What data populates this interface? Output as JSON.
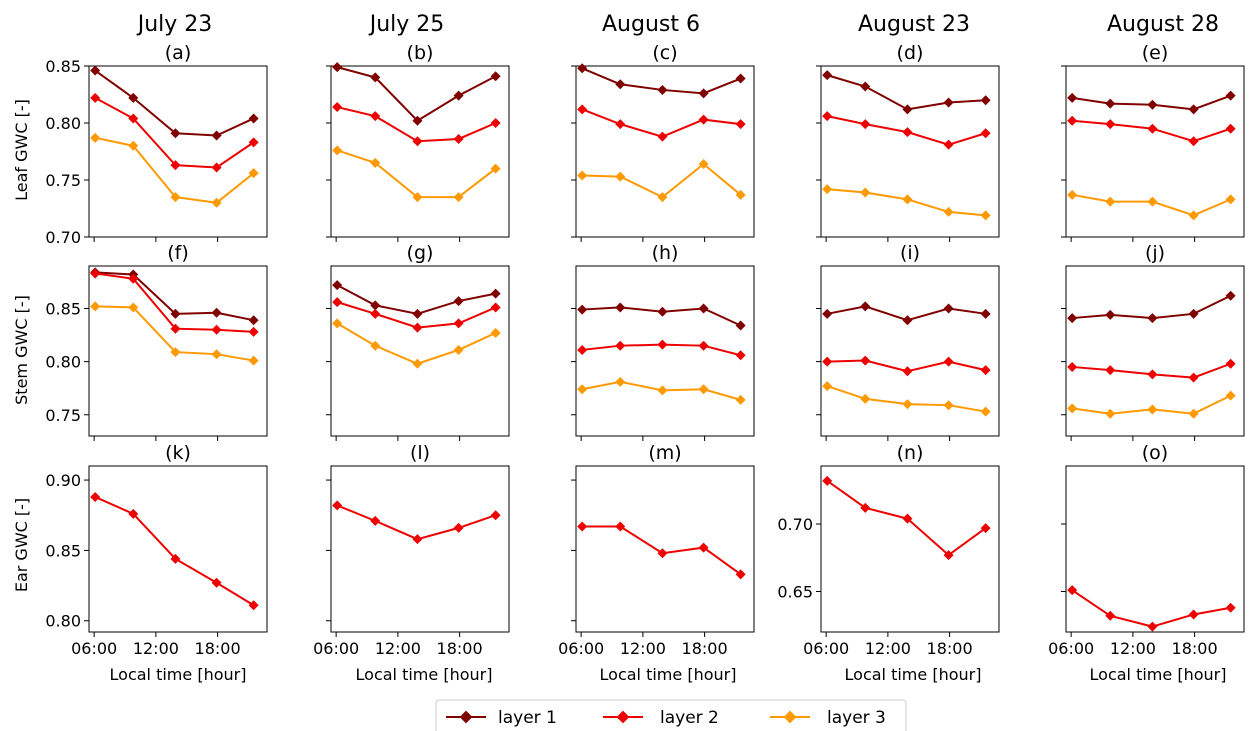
{
  "colors": {
    "layer1": "#800000",
    "layer2": "#ee0000",
    "layer3": "#ff9900"
  },
  "legend": {
    "placement": "bottom-center",
    "entries": [
      {
        "label": "layer 1",
        "color_key": "layer1"
      },
      {
        "label": "layer 2",
        "color_key": "layer2"
      },
      {
        "label": "layer 3",
        "color_key": "layer3"
      }
    ]
  },
  "columns": [
    {
      "title": "July 23"
    },
    {
      "title": "July 25"
    },
    {
      "title": "August 6"
    },
    {
      "title": "August 23"
    },
    {
      "title": "August 28"
    }
  ],
  "x_axis": {
    "label": "Local time [hour]",
    "ticks": [
      {
        "value": 6,
        "label": "06:00"
      },
      {
        "value": 12,
        "label": "12:00"
      },
      {
        "value": 18,
        "label": "18:00"
      }
    ],
    "xlim": [
      5.5,
      22.8
    ]
  },
  "rows": [
    {
      "ylabel": "Leaf GWC [-]",
      "ylim": [
        0.7,
        0.85
      ],
      "yticks": [
        "0.70",
        "0.75",
        "0.80",
        "0.85"
      ],
      "shared_y": true
    },
    {
      "ylabel": "Stem GWC [-]",
      "ylim": [
        0.73,
        0.89
      ],
      "yticks": [
        "0.75",
        "0.80",
        "0.85"
      ],
      "shared_y": true
    },
    {
      "ylabel": "Ear GWC [-]",
      "ylim": null,
      "yticks": [],
      "shared_y": false
    }
  ],
  "chart_data": [
    {
      "type": "line",
      "panel": "(a)",
      "title": "July 23",
      "ylabel": "Leaf GWC [-]",
      "ylim": [
        0.7,
        0.85
      ],
      "series": [
        {
          "name": "layer 1",
          "x": [
            6.1,
            9.8,
            13.9,
            17.9,
            21.5
          ],
          "y": [
            0.846,
            0.822,
            0.791,
            0.789,
            0.804
          ]
        },
        {
          "name": "layer 2",
          "x": [
            6.1,
            9.8,
            13.9,
            17.9,
            21.5
          ],
          "y": [
            0.822,
            0.804,
            0.763,
            0.761,
            0.783
          ]
        },
        {
          "name": "layer 3",
          "x": [
            6.1,
            9.8,
            13.9,
            17.9,
            21.5
          ],
          "y": [
            0.787,
            0.78,
            0.735,
            0.73,
            0.756
          ]
        }
      ]
    },
    {
      "type": "line",
      "panel": "(b)",
      "title": "July 25",
      "ylabel": "",
      "ylim": [
        0.7,
        0.85
      ],
      "series": [
        {
          "name": "layer 1",
          "x": [
            6.1,
            9.8,
            13.9,
            17.9,
            21.5
          ],
          "y": [
            0.849,
            0.84,
            0.802,
            0.824,
            0.841
          ]
        },
        {
          "name": "layer 2",
          "x": [
            6.1,
            9.8,
            13.9,
            17.9,
            21.5
          ],
          "y": [
            0.814,
            0.806,
            0.784,
            0.786,
            0.8
          ]
        },
        {
          "name": "layer 3",
          "x": [
            6.1,
            9.8,
            13.9,
            17.9,
            21.5
          ],
          "y": [
            0.776,
            0.765,
            0.735,
            0.735,
            0.76
          ]
        }
      ]
    },
    {
      "type": "line",
      "panel": "(c)",
      "title": "August 6",
      "ylabel": "",
      "ylim": [
        0.7,
        0.85
      ],
      "series": [
        {
          "name": "layer 1",
          "x": [
            6.1,
            9.8,
            13.9,
            17.9,
            21.5
          ],
          "y": [
            0.848,
            0.834,
            0.829,
            0.826,
            0.839
          ]
        },
        {
          "name": "layer 2",
          "x": [
            6.1,
            9.8,
            13.9,
            17.9,
            21.5
          ],
          "y": [
            0.812,
            0.799,
            0.788,
            0.803,
            0.799
          ]
        },
        {
          "name": "layer 3",
          "x": [
            6.1,
            9.8,
            13.9,
            17.9,
            21.5
          ],
          "y": [
            0.754,
            0.753,
            0.735,
            0.764,
            0.737
          ]
        }
      ]
    },
    {
      "type": "line",
      "panel": "(d)",
      "title": "August 23",
      "ylabel": "",
      "ylim": [
        0.7,
        0.85
      ],
      "series": [
        {
          "name": "layer 1",
          "x": [
            6.1,
            9.8,
            13.9,
            17.9,
            21.5
          ],
          "y": [
            0.842,
            0.832,
            0.812,
            0.818,
            0.82
          ]
        },
        {
          "name": "layer 2",
          "x": [
            6.1,
            9.8,
            13.9,
            17.9,
            21.5
          ],
          "y": [
            0.806,
            0.799,
            0.792,
            0.781,
            0.791
          ]
        },
        {
          "name": "layer 3",
          "x": [
            6.1,
            9.8,
            13.9,
            17.9,
            21.5
          ],
          "y": [
            0.742,
            0.739,
            0.733,
            0.722,
            0.719
          ]
        }
      ]
    },
    {
      "type": "line",
      "panel": "(e)",
      "title": "August 28",
      "ylabel": "",
      "ylim": [
        0.7,
        0.85
      ],
      "series": [
        {
          "name": "layer 1",
          "x": [
            6.1,
            9.8,
            13.9,
            17.9,
            21.5
          ],
          "y": [
            0.822,
            0.817,
            0.816,
            0.812,
            0.824
          ]
        },
        {
          "name": "layer 2",
          "x": [
            6.1,
            9.8,
            13.9,
            17.9,
            21.5
          ],
          "y": [
            0.802,
            0.799,
            0.795,
            0.784,
            0.795
          ]
        },
        {
          "name": "layer 3",
          "x": [
            6.1,
            9.8,
            13.9,
            17.9,
            21.5
          ],
          "y": [
            0.737,
            0.731,
            0.731,
            0.719,
            0.733
          ]
        }
      ]
    },
    {
      "type": "line",
      "panel": "(f)",
      "title": "",
      "ylabel": "Stem GWC [-]",
      "ylim": [
        0.73,
        0.89
      ],
      "series": [
        {
          "name": "layer 1",
          "x": [
            6.1,
            9.8,
            13.9,
            17.9,
            21.5
          ],
          "y": [
            0.884,
            0.882,
            0.845,
            0.846,
            0.839
          ]
        },
        {
          "name": "layer 2",
          "x": [
            6.1,
            9.8,
            13.9,
            17.9,
            21.5
          ],
          "y": [
            0.883,
            0.878,
            0.831,
            0.83,
            0.828
          ]
        },
        {
          "name": "layer 3",
          "x": [
            6.1,
            9.8,
            13.9,
            17.9,
            21.5
          ],
          "y": [
            0.852,
            0.851,
            0.809,
            0.807,
            0.801
          ]
        }
      ]
    },
    {
      "type": "line",
      "panel": "(g)",
      "title": "",
      "ylabel": "",
      "ylim": [
        0.73,
        0.89
      ],
      "series": [
        {
          "name": "layer 1",
          "x": [
            6.1,
            9.8,
            13.9,
            17.9,
            21.5
          ],
          "y": [
            0.872,
            0.853,
            0.845,
            0.857,
            0.864
          ]
        },
        {
          "name": "layer 2",
          "x": [
            6.1,
            9.8,
            13.9,
            17.9,
            21.5
          ],
          "y": [
            0.856,
            0.845,
            0.832,
            0.836,
            0.851
          ]
        },
        {
          "name": "layer 3",
          "x": [
            6.1,
            9.8,
            13.9,
            17.9,
            21.5
          ],
          "y": [
            0.836,
            0.815,
            0.798,
            0.811,
            0.827
          ]
        }
      ]
    },
    {
      "type": "line",
      "panel": "(h)",
      "title": "",
      "ylabel": "",
      "ylim": [
        0.73,
        0.89
      ],
      "series": [
        {
          "name": "layer 1",
          "x": [
            6.1,
            9.8,
            13.9,
            17.9,
            21.5
          ],
          "y": [
            0.849,
            0.851,
            0.847,
            0.85,
            0.834
          ]
        },
        {
          "name": "layer 2",
          "x": [
            6.1,
            9.8,
            13.9,
            17.9,
            21.5
          ],
          "y": [
            0.811,
            0.815,
            0.816,
            0.815,
            0.806
          ]
        },
        {
          "name": "layer 3",
          "x": [
            6.1,
            9.8,
            13.9,
            17.9,
            21.5
          ],
          "y": [
            0.774,
            0.781,
            0.773,
            0.774,
            0.764
          ]
        }
      ]
    },
    {
      "type": "line",
      "panel": "(i)",
      "title": "",
      "ylabel": "",
      "ylim": [
        0.73,
        0.89
      ],
      "series": [
        {
          "name": "layer 1",
          "x": [
            6.1,
            9.8,
            13.9,
            17.9,
            21.5
          ],
          "y": [
            0.845,
            0.852,
            0.839,
            0.85,
            0.845
          ]
        },
        {
          "name": "layer 2",
          "x": [
            6.1,
            9.8,
            13.9,
            17.9,
            21.5
          ],
          "y": [
            0.8,
            0.801,
            0.791,
            0.8,
            0.792
          ]
        },
        {
          "name": "layer 3",
          "x": [
            6.1,
            9.8,
            13.9,
            17.9,
            21.5
          ],
          "y": [
            0.777,
            0.765,
            0.76,
            0.759,
            0.753
          ]
        }
      ]
    },
    {
      "type": "line",
      "panel": "(j)",
      "title": "",
      "ylabel": "",
      "ylim": [
        0.73,
        0.89
      ],
      "series": [
        {
          "name": "layer 1",
          "x": [
            6.1,
            9.8,
            13.9,
            17.9,
            21.5
          ],
          "y": [
            0.841,
            0.844,
            0.841,
            0.845,
            0.862
          ]
        },
        {
          "name": "layer 2",
          "x": [
            6.1,
            9.8,
            13.9,
            17.9,
            21.5
          ],
          "y": [
            0.795,
            0.792,
            0.788,
            0.785,
            0.798
          ]
        },
        {
          "name": "layer 3",
          "x": [
            6.1,
            9.8,
            13.9,
            17.9,
            21.5
          ],
          "y": [
            0.756,
            0.751,
            0.755,
            0.751,
            0.768
          ]
        }
      ]
    },
    {
      "type": "line",
      "panel": "(k)",
      "title": "",
      "ylabel": "Ear GWC [-]",
      "ylim": [
        0.792,
        0.91
      ],
      "yticks": [
        "0.80",
        "0.85",
        "0.90"
      ],
      "series": [
        {
          "name": "layer 2",
          "x": [
            6.1,
            9.8,
            13.9,
            17.9,
            21.5
          ],
          "y": [
            0.888,
            0.876,
            0.844,
            0.827,
            0.811
          ]
        }
      ]
    },
    {
      "type": "line",
      "panel": "(l)",
      "title": "",
      "ylabel": "",
      "ylim": [
        0.792,
        0.91
      ],
      "yticks": [],
      "series": [
        {
          "name": "layer 2",
          "x": [
            6.1,
            9.8,
            13.9,
            17.9,
            21.5
          ],
          "y": [
            0.882,
            0.871,
            0.858,
            0.866,
            0.875
          ]
        }
      ]
    },
    {
      "type": "line",
      "panel": "(m)",
      "title": "",
      "ylabel": "",
      "ylim": [
        0.792,
        0.91
      ],
      "yticks": [],
      "series": [
        {
          "name": "layer 2",
          "x": [
            6.1,
            9.8,
            13.9,
            17.9,
            21.5
          ],
          "y": [
            0.867,
            0.867,
            0.848,
            0.852,
            0.833
          ]
        }
      ]
    },
    {
      "type": "line",
      "panel": "(n)",
      "title": "",
      "ylabel": "",
      "ylim": [
        0.62,
        0.743
      ],
      "yticks": [
        "0.65",
        "0.70"
      ],
      "series": [
        {
          "name": "layer 2",
          "x": [
            6.1,
            9.8,
            13.9,
            17.9,
            21.5
          ],
          "y": [
            0.732,
            0.712,
            0.704,
            0.677,
            0.697
          ]
        }
      ]
    },
    {
      "type": "line",
      "panel": "(o)",
      "title": "",
      "ylabel": "",
      "ylim": [
        0.62,
        0.743
      ],
      "yticks": [],
      "series": [
        {
          "name": "layer 2",
          "x": [
            6.1,
            9.8,
            13.9,
            17.9,
            21.5
          ],
          "y": [
            0.651,
            0.632,
            0.624,
            0.633,
            0.638
          ]
        }
      ]
    }
  ]
}
